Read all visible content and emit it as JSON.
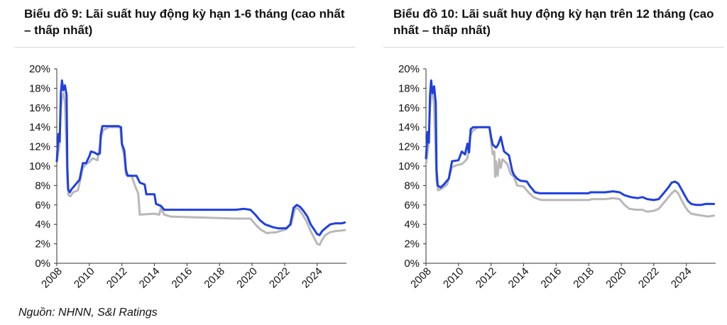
{
  "source": "Nguồn: NHNN, S&I Ratings",
  "colors": {
    "high": "#1f3fe0",
    "low": "#b8b8b8",
    "axis": "#333333"
  },
  "chart_data": [
    {
      "type": "line",
      "title": "Biểu đồ 9: Lãi suất huy động kỳ hạn 1-6 tháng (cao nhất – thấp nhất)",
      "xlabel": "",
      "ylabel": "",
      "xlim": [
        2008,
        2025.8
      ],
      "ylim": [
        0,
        20
      ],
      "x_ticks": [
        2008,
        2010,
        2012,
        2014,
        2016,
        2018,
        2020,
        2022,
        2024
      ],
      "y_ticks": [
        0,
        2,
        4,
        6,
        8,
        10,
        12,
        14,
        16,
        18,
        20
      ],
      "y_tick_labels": [
        "0%",
        "2%",
        "4%",
        "6%",
        "8%",
        "10%",
        "12%",
        "14%",
        "16%",
        "18%",
        "20%"
      ],
      "legend": "none",
      "grid": false,
      "series": [
        {
          "color_key": "high",
          "points": [
            [
              2008.0,
              10.5
            ],
            [
              2008.1,
              13.3
            ],
            [
              2008.18,
              12.5
            ],
            [
              2008.25,
              17.5
            ],
            [
              2008.32,
              18.8
            ],
            [
              2008.4,
              17.8
            ],
            [
              2008.5,
              18.3
            ],
            [
              2008.6,
              17.3
            ],
            [
              2008.65,
              9.8
            ],
            [
              2008.7,
              7.6
            ],
            [
              2008.8,
              7.3
            ],
            [
              2008.9,
              7.6
            ],
            [
              2009.1,
              8.0
            ],
            [
              2009.4,
              8.6
            ],
            [
              2009.6,
              10.3
            ],
            [
              2009.8,
              10.3
            ],
            [
              2010.0,
              11.0
            ],
            [
              2010.1,
              11.5
            ],
            [
              2010.3,
              11.4
            ],
            [
              2010.5,
              11.2
            ],
            [
              2010.65,
              11.3
            ],
            [
              2010.7,
              13.2
            ],
            [
              2010.8,
              14.1
            ],
            [
              2011.3,
              14.1
            ],
            [
              2011.8,
              14.1
            ],
            [
              2011.95,
              14.0
            ],
            [
              2012.0,
              12.3
            ],
            [
              2012.15,
              11.6
            ],
            [
              2012.25,
              9.6
            ],
            [
              2012.35,
              9.0
            ],
            [
              2012.9,
              9.0
            ],
            [
              2013.1,
              8.3
            ],
            [
              2013.4,
              8.1
            ],
            [
              2013.5,
              7.1
            ],
            [
              2014.0,
              7.1
            ],
            [
              2014.1,
              6.1
            ],
            [
              2014.4,
              5.9
            ],
            [
              2014.6,
              5.5
            ],
            [
              2019.0,
              5.5
            ],
            [
              2019.5,
              5.6
            ],
            [
              2019.9,
              5.5
            ],
            [
              2020.2,
              5.0
            ],
            [
              2020.5,
              4.4
            ],
            [
              2020.8,
              4.0
            ],
            [
              2021.3,
              3.7
            ],
            [
              2021.6,
              3.6
            ],
            [
              2022.1,
              3.6
            ],
            [
              2022.35,
              4.0
            ],
            [
              2022.55,
              5.7
            ],
            [
              2022.75,
              6.0
            ],
            [
              2022.95,
              5.8
            ],
            [
              2023.15,
              5.4
            ],
            [
              2023.4,
              4.8
            ],
            [
              2023.6,
              4.0
            ],
            [
              2023.8,
              3.5
            ],
            [
              2024.0,
              3.0
            ],
            [
              2024.15,
              2.9
            ],
            [
              2024.3,
              3.3
            ],
            [
              2024.5,
              3.6
            ],
            [
              2024.8,
              4.0
            ],
            [
              2025.1,
              4.1
            ],
            [
              2025.5,
              4.1
            ],
            [
              2025.7,
              4.2
            ]
          ]
        },
        {
          "color_key": "low",
          "points": [
            [
              2008.0,
              10.5
            ],
            [
              2008.15,
              12.0
            ],
            [
              2008.25,
              15.8
            ],
            [
              2008.32,
              17.0
            ],
            [
              2008.42,
              17.5
            ],
            [
              2008.5,
              16.5
            ],
            [
              2008.6,
              11.3
            ],
            [
              2008.65,
              8.5
            ],
            [
              2008.72,
              7.0
            ],
            [
              2008.85,
              6.9
            ],
            [
              2009.0,
              7.3
            ],
            [
              2009.3,
              7.5
            ],
            [
              2009.6,
              9.8
            ],
            [
              2009.8,
              10.2
            ],
            [
              2010.0,
              10.4
            ],
            [
              2010.2,
              10.8
            ],
            [
              2010.5,
              10.6
            ],
            [
              2010.7,
              12.8
            ],
            [
              2010.85,
              13.7
            ],
            [
              2011.2,
              14.0
            ],
            [
              2011.9,
              14.0
            ],
            [
              2012.0,
              12.1
            ],
            [
              2012.15,
              11.0
            ],
            [
              2012.25,
              9.1
            ],
            [
              2012.6,
              9.0
            ],
            [
              2012.8,
              8.0
            ],
            [
              2013.0,
              7.2
            ],
            [
              2013.1,
              5.0
            ],
            [
              2014.0,
              5.1
            ],
            [
              2014.3,
              5.0
            ],
            [
              2014.4,
              5.7
            ],
            [
              2014.6,
              5.0
            ],
            [
              2015.0,
              4.8
            ],
            [
              2019.0,
              4.6
            ],
            [
              2019.9,
              4.6
            ],
            [
              2020.2,
              4.0
            ],
            [
              2020.5,
              3.5
            ],
            [
              2020.9,
              3.1
            ],
            [
              2021.5,
              3.2
            ],
            [
              2022.1,
              3.5
            ],
            [
              2022.4,
              4.0
            ],
            [
              2022.65,
              5.7
            ],
            [
              2022.85,
              5.6
            ],
            [
              2023.1,
              5.0
            ],
            [
              2023.35,
              4.3
            ],
            [
              2023.6,
              3.3
            ],
            [
              2023.85,
              2.5
            ],
            [
              2024.0,
              2.0
            ],
            [
              2024.15,
              1.9
            ],
            [
              2024.3,
              2.4
            ],
            [
              2024.5,
              2.9
            ],
            [
              2024.8,
              3.2
            ],
            [
              2025.1,
              3.3
            ],
            [
              2025.7,
              3.4
            ]
          ]
        }
      ]
    },
    {
      "type": "line",
      "title": "Biểu đồ 10: Lãi suất huy động kỳ hạn trên 12 tháng (cao nhất – thấp nhất)",
      "xlabel": "",
      "ylabel": "",
      "xlim": [
        2008,
        2025.8
      ],
      "ylim": [
        0,
        20
      ],
      "x_ticks": [
        2008,
        2010,
        2012,
        2014,
        2016,
        2018,
        2020,
        2022,
        2024
      ],
      "y_ticks": [
        0,
        2,
        4,
        6,
        8,
        10,
        12,
        14,
        16,
        18,
        20
      ],
      "y_tick_labels": [
        "0%",
        "2%",
        "4%",
        "6%",
        "8%",
        "10%",
        "12%",
        "14%",
        "16%",
        "18%",
        "20%"
      ],
      "legend": "none",
      "grid": false,
      "series": [
        {
          "color_key": "high",
          "points": [
            [
              2008.0,
              10.8
            ],
            [
              2008.1,
              13.5
            ],
            [
              2008.18,
              12.4
            ],
            [
              2008.25,
              17.3
            ],
            [
              2008.32,
              18.8
            ],
            [
              2008.4,
              17.5
            ],
            [
              2008.5,
              18.2
            ],
            [
              2008.6,
              16.5
            ],
            [
              2008.65,
              9.6
            ],
            [
              2008.72,
              8.0
            ],
            [
              2008.9,
              7.8
            ],
            [
              2009.1,
              8.1
            ],
            [
              2009.4,
              8.7
            ],
            [
              2009.6,
              10.5
            ],
            [
              2010.0,
              10.6
            ],
            [
              2010.2,
              11.5
            ],
            [
              2010.4,
              11.2
            ],
            [
              2010.55,
              12.3
            ],
            [
              2010.65,
              11.4
            ],
            [
              2010.75,
              13.8
            ],
            [
              2010.9,
              14.0
            ],
            [
              2011.9,
              14.0
            ],
            [
              2012.0,
              13.0
            ],
            [
              2012.1,
              12.2
            ],
            [
              2012.3,
              11.9
            ],
            [
              2012.4,
              12.1
            ],
            [
              2012.5,
              12.5
            ],
            [
              2012.6,
              13.0
            ],
            [
              2012.7,
              12.2
            ],
            [
              2012.8,
              11.5
            ],
            [
              2013.1,
              11.1
            ],
            [
              2013.3,
              9.5
            ],
            [
              2013.4,
              9.1
            ],
            [
              2013.6,
              8.7
            ],
            [
              2013.8,
              8.5
            ],
            [
              2014.2,
              8.4
            ],
            [
              2014.4,
              7.9
            ],
            [
              2014.7,
              7.3
            ],
            [
              2015.0,
              7.2
            ],
            [
              2018.0,
              7.2
            ],
            [
              2018.1,
              7.3
            ],
            [
              2019.0,
              7.3
            ],
            [
              2019.5,
              7.4
            ],
            [
              2019.9,
              7.3
            ],
            [
              2020.2,
              7.0
            ],
            [
              2020.6,
              6.8
            ],
            [
              2021.0,
              6.7
            ],
            [
              2021.3,
              6.8
            ],
            [
              2021.6,
              6.6
            ],
            [
              2022.0,
              6.5
            ],
            [
              2022.3,
              6.6
            ],
            [
              2022.6,
              7.2
            ],
            [
              2022.9,
              7.8
            ],
            [
              2023.1,
              8.3
            ],
            [
              2023.3,
              8.4
            ],
            [
              2023.5,
              8.2
            ],
            [
              2023.7,
              7.6
            ],
            [
              2023.9,
              7.0
            ],
            [
              2024.1,
              6.4
            ],
            [
              2024.3,
              6.1
            ],
            [
              2024.6,
              6.0
            ],
            [
              2024.9,
              6.0
            ],
            [
              2025.2,
              6.1
            ],
            [
              2025.7,
              6.1
            ]
          ]
        },
        {
          "color_key": "low",
          "points": [
            [
              2008.0,
              10.2
            ],
            [
              2008.15,
              12.0
            ],
            [
              2008.25,
              16.0
            ],
            [
              2008.32,
              17.2
            ],
            [
              2008.42,
              17.6
            ],
            [
              2008.5,
              16.2
            ],
            [
              2008.6,
              11.0
            ],
            [
              2008.65,
              8.5
            ],
            [
              2008.75,
              7.5
            ],
            [
              2009.0,
              7.7
            ],
            [
              2009.3,
              8.1
            ],
            [
              2009.6,
              9.9
            ],
            [
              2009.9,
              10.1
            ],
            [
              2010.2,
              10.2
            ],
            [
              2010.4,
              10.5
            ],
            [
              2010.55,
              10.8
            ],
            [
              2010.7,
              13.0
            ],
            [
              2010.85,
              13.6
            ],
            [
              2011.2,
              14.0
            ],
            [
              2011.9,
              14.0
            ],
            [
              2012.0,
              12.5
            ],
            [
              2012.1,
              11.2
            ],
            [
              2012.2,
              11.5
            ],
            [
              2012.25,
              8.9
            ],
            [
              2012.3,
              10.5
            ],
            [
              2012.4,
              9.0
            ],
            [
              2012.5,
              10.7
            ],
            [
              2012.6,
              9.8
            ],
            [
              2012.7,
              10.7
            ],
            [
              2013.0,
              10.2
            ],
            [
              2013.2,
              9.2
            ],
            [
              2013.4,
              8.9
            ],
            [
              2013.6,
              8.0
            ],
            [
              2014.0,
              7.9
            ],
            [
              2014.3,
              7.3
            ],
            [
              2014.6,
              6.8
            ],
            [
              2014.9,
              6.6
            ],
            [
              2015.1,
              6.5
            ],
            [
              2018.0,
              6.5
            ],
            [
              2018.2,
              6.6
            ],
            [
              2019.0,
              6.6
            ],
            [
              2019.5,
              6.7
            ],
            [
              2019.9,
              6.6
            ],
            [
              2020.2,
              6.0
            ],
            [
              2020.5,
              5.6
            ],
            [
              2020.9,
              5.5
            ],
            [
              2021.3,
              5.5
            ],
            [
              2021.6,
              5.3
            ],
            [
              2022.0,
              5.4
            ],
            [
              2022.3,
              5.6
            ],
            [
              2022.6,
              6.2
            ],
            [
              2022.9,
              6.8
            ],
            [
              2023.1,
              7.2
            ],
            [
              2023.3,
              7.5
            ],
            [
              2023.5,
              7.2
            ],
            [
              2023.7,
              6.5
            ],
            [
              2023.9,
              5.9
            ],
            [
              2024.1,
              5.4
            ],
            [
              2024.3,
              5.1
            ],
            [
              2024.6,
              5.0
            ],
            [
              2025.0,
              4.9
            ],
            [
              2025.3,
              4.8
            ],
            [
              2025.7,
              4.9
            ]
          ]
        }
      ]
    }
  ]
}
